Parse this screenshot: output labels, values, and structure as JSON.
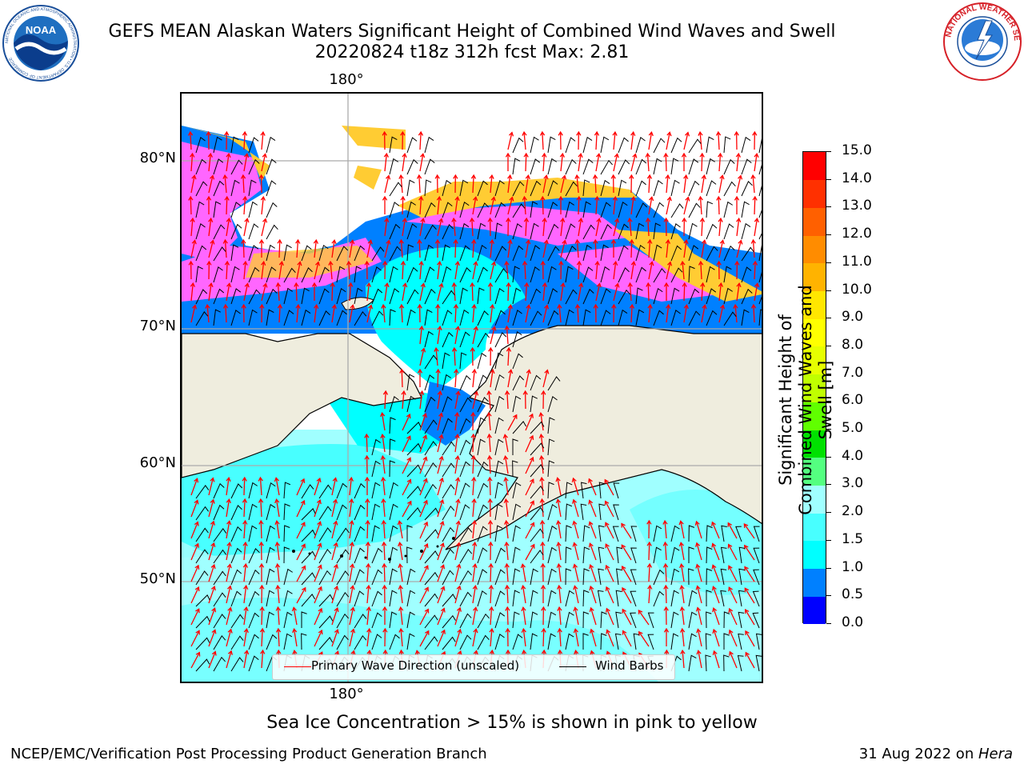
{
  "header": {
    "title_line1": "GEFS MEAN Alaskan Waters Significant Height of Combined Wind Waves and Swell",
    "title_line2": "20220824 t18z 312h fcst   Max: 2.81"
  },
  "logos": {
    "left": {
      "name": "noaa-logo",
      "text": "NOAA",
      "ring_text": "NATIONAL OCEANIC AND ATMOSPHERIC ADMINISTRATION • U.S. DEPARTMENT OF COMMERCE"
    },
    "right": {
      "name": "nws-logo",
      "ring_text": "NATIONAL WEATHER SERVICE"
    }
  },
  "map": {
    "lon_label_top": "180°",
    "lon_label_bottom": "180°",
    "lat_labels": [
      "80°N",
      "70°N",
      "60°N",
      "50°N"
    ],
    "colors": {
      "land": "#efedde",
      "ice": "#ff66ff",
      "ice_edge": "#ffcc33",
      "wave_arrow": "#ff0000",
      "wind_barb": "#000000",
      "grid": "#aaaaaa"
    }
  },
  "legend": {
    "items": [
      {
        "label": "Primary Wave Direction (unscaled)",
        "color": "#ff0000"
      },
      {
        "label": "Wind Barbs",
        "color": "#000000"
      }
    ]
  },
  "colorbar": {
    "label": "Significant Height of Combined Wind Waves and Swell [m]",
    "ticks": [
      "0.0",
      "0.5",
      "1.0",
      "1.5",
      "2.0",
      "3.0",
      "4.0",
      "5.0",
      "6.0",
      "7.0",
      "8.0",
      "9.0",
      "10.0",
      "11.0",
      "12.0",
      "13.0",
      "14.0",
      "15.0"
    ],
    "colors": [
      "#0000ff",
      "#0080ff",
      "#00ffff",
      "#48ffff",
      "#a0ffff",
      "#54ff80",
      "#00e000",
      "#60ff00",
      "#c0ff00",
      "#e6ff00",
      "#ffff00",
      "#ffe600",
      "#ffb300",
      "#ff8c00",
      "#ff6000",
      "#ff3000",
      "#ff0000"
    ]
  },
  "footer": {
    "note": "Sea Ice Concentration > 15% is shown in pink to yellow",
    "credit_left": "NCEP/EMC/Verification Post Processing Product Generation Branch",
    "credit_date": "31 Aug 2022 on ",
    "credit_host": "Hera"
  }
}
